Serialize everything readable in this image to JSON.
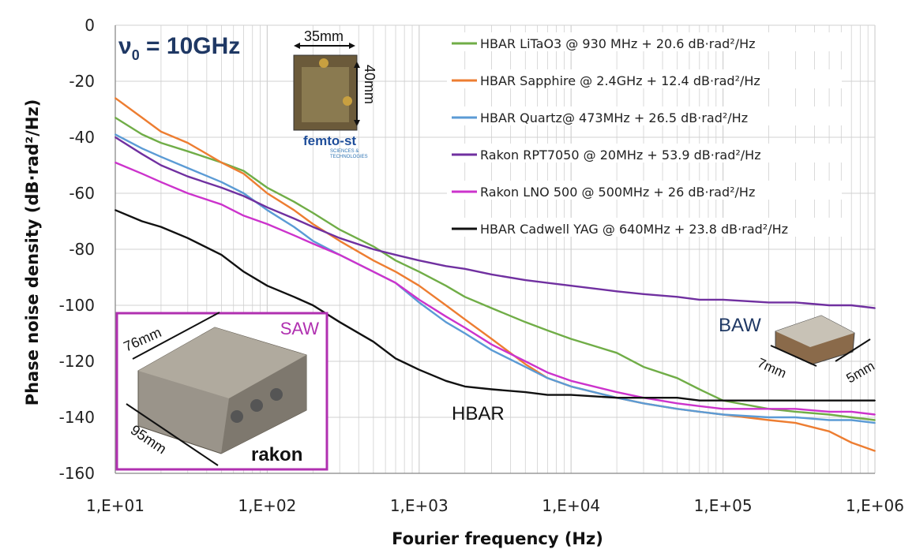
{
  "chart_data": {
    "type": "line",
    "title": "ν0 = 10GHz",
    "title_sym": "ν",
    "title_sub": "0",
    "title_rest": " = 10GHz",
    "xlabel": "Fourier frequency (Hz)",
    "ylabel": "Phase noise density (dB·rad²/Hz)",
    "xscale": "log",
    "xlim": [
      10,
      1000000
    ],
    "ylim": [
      -160,
      0
    ],
    "xticks": [
      10,
      100,
      1000,
      10000,
      100000,
      1000000
    ],
    "xtick_labels": [
      "1,E+01",
      "1,E+02",
      "1,E+03",
      "1,E+04",
      "1,E+05",
      "1,E+06"
    ],
    "yticks": [
      0,
      -20,
      -40,
      -60,
      -80,
      -100,
      -120,
      -140,
      -160
    ],
    "ytick_labels": [
      "0",
      "-20",
      "-40",
      "-60",
      "-80",
      "-100",
      "-120",
      "-140",
      "-160"
    ],
    "grid": true,
    "legend_position": "top-right",
    "series": [
      {
        "name": "HBAR LiTaO3 @ 930 MHz + 20.6 dB·rad²/Hz",
        "color": "#70ad47",
        "x": [
          10,
          15,
          20,
          30,
          50,
          70,
          100,
          150,
          200,
          300,
          500,
          700,
          1000,
          1500,
          2000,
          3000,
          5000,
          7000,
          10000,
          20000,
          30000,
          50000,
          70000,
          100000,
          200000,
          300000,
          500000,
          700000,
          1000000
        ],
        "y": [
          -33,
          -39,
          -42,
          -45,
          -49,
          -52,
          -58,
          -63,
          -67,
          -73,
          -79,
          -84,
          -88,
          -93,
          -97,
          -101,
          -106,
          -109,
          -112,
          -117,
          -122,
          -126,
          -130,
          -134,
          -137,
          -138,
          -139,
          -140,
          -141
        ]
      },
      {
        "name": "HBAR Sapphire @ 2.4GHz + 12.4 dB·rad²/Hz",
        "color": "#ed7d31",
        "x": [
          10,
          15,
          20,
          30,
          50,
          70,
          100,
          150,
          200,
          300,
          500,
          700,
          1000,
          1500,
          2000,
          3000,
          5000,
          7000,
          10000,
          20000,
          30000,
          50000,
          70000,
          100000,
          200000,
          300000,
          500000,
          700000,
          1000000
        ],
        "y": [
          -26,
          -33,
          -38,
          -42,
          -49,
          -53,
          -60,
          -66,
          -71,
          -77,
          -84,
          -88,
          -93,
          -100,
          -105,
          -112,
          -121,
          -126,
          -129,
          -133,
          -135,
          -137,
          -138,
          -139,
          -141,
          -142,
          -145,
          -149,
          -152
        ]
      },
      {
        "name": "HBAR Quartz@ 473MHz + 26.5 dB·rad²/Hz",
        "color": "#5b9bd5",
        "x": [
          10,
          15,
          20,
          30,
          50,
          70,
          100,
          150,
          200,
          300,
          500,
          700,
          1000,
          1500,
          2000,
          3000,
          5000,
          7000,
          10000,
          20000,
          30000,
          50000,
          70000,
          100000,
          200000,
          300000,
          500000,
          700000,
          1000000
        ],
        "y": [
          -39,
          -44,
          -47,
          -51,
          -56,
          -60,
          -66,
          -72,
          -77,
          -82,
          -88,
          -92,
          -99,
          -106,
          -110,
          -116,
          -122,
          -126,
          -129,
          -133,
          -135,
          -137,
          -138,
          -139,
          -140,
          -140,
          -141,
          -141,
          -142
        ]
      },
      {
        "name": "Rakon RPT7050 @ 20MHz + 53.9 dB·rad²/Hz",
        "color": "#7030a0",
        "x": [
          10,
          15,
          20,
          30,
          50,
          70,
          100,
          150,
          200,
          300,
          500,
          700,
          1000,
          1500,
          2000,
          3000,
          5000,
          7000,
          10000,
          20000,
          30000,
          50000,
          70000,
          100000,
          200000,
          300000,
          500000,
          700000,
          1000000
        ],
        "y": [
          -40,
          -46,
          -50,
          -54,
          -58,
          -61,
          -65,
          -69,
          -72,
          -76,
          -80,
          -82,
          -84,
          -86,
          -87,
          -89,
          -91,
          -92,
          -93,
          -95,
          -96,
          -97,
          -98,
          -98,
          -99,
          -99,
          -100,
          -100,
          -101
        ]
      },
      {
        "name": "Rakon LNO 500 @ 500MHz + 26 dB·rad²/Hz",
        "color": "#cc33cc",
        "x": [
          10,
          15,
          20,
          30,
          50,
          70,
          100,
          150,
          200,
          300,
          500,
          700,
          1000,
          1500,
          2000,
          3000,
          5000,
          7000,
          10000,
          20000,
          30000,
          50000,
          70000,
          100000,
          200000,
          300000,
          500000,
          700000,
          1000000
        ],
        "y": [
          -49,
          -53,
          -56,
          -60,
          -64,
          -68,
          -71,
          -75,
          -78,
          -82,
          -88,
          -92,
          -98,
          -104,
          -108,
          -114,
          -120,
          -124,
          -127,
          -131,
          -133,
          -135,
          -136,
          -137,
          -137,
          -137,
          -138,
          -138,
          -139
        ]
      },
      {
        "name": "HBAR Cadwell YAG @ 640MHz + 23.8 dB·rad²/Hz",
        "color": "#111111",
        "x": [
          10,
          15,
          20,
          30,
          50,
          70,
          100,
          150,
          200,
          300,
          500,
          700,
          1000,
          1500,
          2000,
          3000,
          5000,
          7000,
          10000,
          20000,
          30000,
          50000,
          70000,
          100000,
          200000,
          300000,
          500000,
          700000,
          1000000
        ],
        "y": [
          -66,
          -70,
          -72,
          -76,
          -82,
          -88,
          -93,
          -97,
          -100,
          -106,
          -113,
          -119,
          -123,
          -127,
          -129,
          -130,
          -131,
          -132,
          -132,
          -133,
          -133,
          -133,
          -134,
          -134,
          -134,
          -134,
          -134,
          -134,
          -134
        ]
      }
    ],
    "annotations": {
      "hbar": "HBAR",
      "saw": "SAW",
      "saw_width": "76mm",
      "saw_length": "95mm",
      "rakon_logo": "rakon",
      "baw": "BAW",
      "baw_width": "7mm",
      "baw_length": "5mm",
      "femto_width": "35mm",
      "femto_height": "40mm",
      "femto_logo": "femto-st",
      "femto_tagline1": "SCIENCES &",
      "femto_tagline2": "TECHNOLOGIES"
    }
  },
  "colors": {
    "grid": "#d0d0d0",
    "axis": "#888888",
    "title": "#1f3864",
    "saw_border": "#b030b0",
    "saw_text": "#b030b0",
    "baw_text": "#1f3864"
  }
}
